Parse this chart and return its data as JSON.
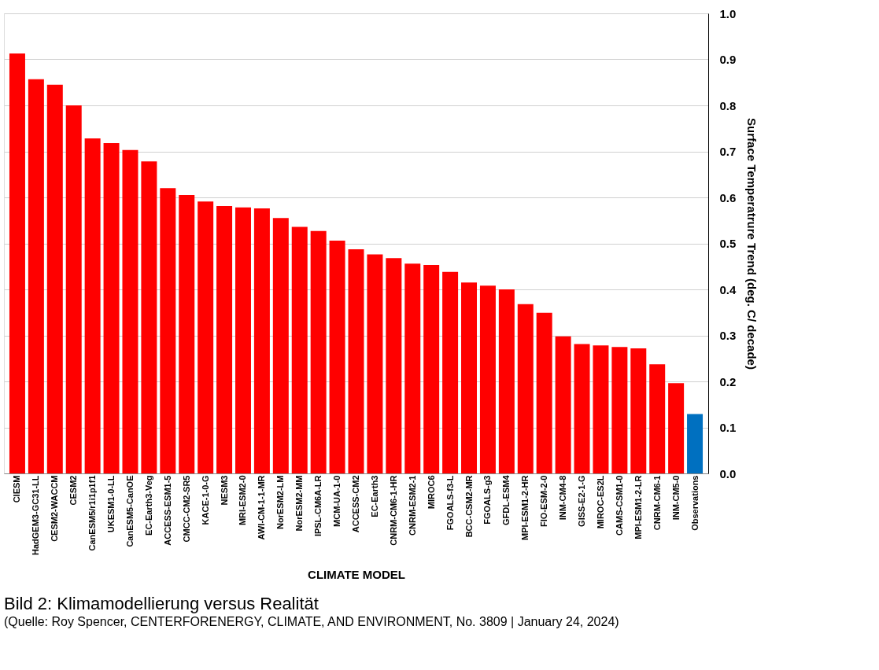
{
  "chart_data": {
    "type": "bar",
    "title": "Bild 2: Klimamodellierung versus Realität",
    "subtitle": "(Quelle: Roy Spencer, CENTERFORENERGY, CLIMATE, AND ENVIRONMENT, No. 3809 | January 24, 2024)",
    "xlabel": "CLIMATE MODEL",
    "ylabel": "Surface Temperatrure Trend (deg. C/ decade)",
    "categories": [
      "CIESM",
      "HadGEM3-GC31-LL",
      "CESM2-WACCM",
      "CESM2",
      "CanESM5/r1i1p1f1",
      "UKESM1-0-LL",
      "CanESM5-CanOE",
      "EC-Earth3-Veg",
      "ACCESS-ESM1-5",
      "CMCC-CM2-SR5",
      "KACE-1-0-G",
      "NESM3",
      "MRI-ESM2-0",
      "AWI-CM-1-1-MR",
      "NorESM2-LM",
      "NorESM2-MM",
      "IPSL-CM6A-LR",
      "MCM-UA-1-0",
      "ACCESS-CM2",
      "EC-Earth3",
      "CNRM-CM6-1-HR",
      "CNRM-ESM2-1",
      "MIROC6",
      "FGOALS-f3-L",
      "BCC-CSM2-MR",
      "FGOALS-g3",
      "GFDL-ESM4",
      "MPI-ESM1-2-HR",
      "FIO-ESM-2-0",
      "INM-CM4-8",
      "GISS-E2-1-G",
      "MIROC-ES2L",
      "CAMS-CSM1-0",
      "MPI-ESM1-2-LR",
      "CNRM-CM6-1",
      "INM-CM5-0",
      "Observations"
    ],
    "values": [
      0.913,
      0.857,
      0.845,
      0.8,
      0.728,
      0.718,
      0.703,
      0.678,
      0.62,
      0.605,
      0.591,
      0.581,
      0.578,
      0.576,
      0.555,
      0.536,
      0.527,
      0.506,
      0.487,
      0.476,
      0.468,
      0.456,
      0.453,
      0.438,
      0.415,
      0.408,
      0.4,
      0.368,
      0.349,
      0.298,
      0.281,
      0.278,
      0.275,
      0.272,
      0.237,
      0.196,
      0.129
    ],
    "colors": [
      "#ff0000",
      "#ff0000",
      "#ff0000",
      "#ff0000",
      "#ff0000",
      "#ff0000",
      "#ff0000",
      "#ff0000",
      "#ff0000",
      "#ff0000",
      "#ff0000",
      "#ff0000",
      "#ff0000",
      "#ff0000",
      "#ff0000",
      "#ff0000",
      "#ff0000",
      "#ff0000",
      "#ff0000",
      "#ff0000",
      "#ff0000",
      "#ff0000",
      "#ff0000",
      "#ff0000",
      "#ff0000",
      "#ff0000",
      "#ff0000",
      "#ff0000",
      "#ff0000",
      "#ff0000",
      "#ff0000",
      "#ff0000",
      "#ff0000",
      "#ff0000",
      "#ff0000",
      "#ff0000",
      "#0070c0"
    ],
    "ylim": [
      0.0,
      1.0
    ],
    "yticks": [
      {
        "value": 0,
        "label": "0.0"
      },
      {
        "value": 0.1,
        "label": "0.1"
      },
      {
        "value": 0.2,
        "label": "0.2"
      },
      {
        "value": 0.3,
        "label": "0.3"
      },
      {
        "value": 0.4,
        "label": "0.4"
      },
      {
        "value": 0.5,
        "label": "0.5"
      },
      {
        "value": 0.6,
        "label": "0.6"
      },
      {
        "value": 0.7,
        "label": "0.7"
      },
      {
        "value": 0.8,
        "label": "0.8"
      },
      {
        "value": 0.9,
        "label": "0.9"
      },
      {
        "value": 1.0,
        "label": "1.0"
      }
    ],
    "grid": "y"
  }
}
